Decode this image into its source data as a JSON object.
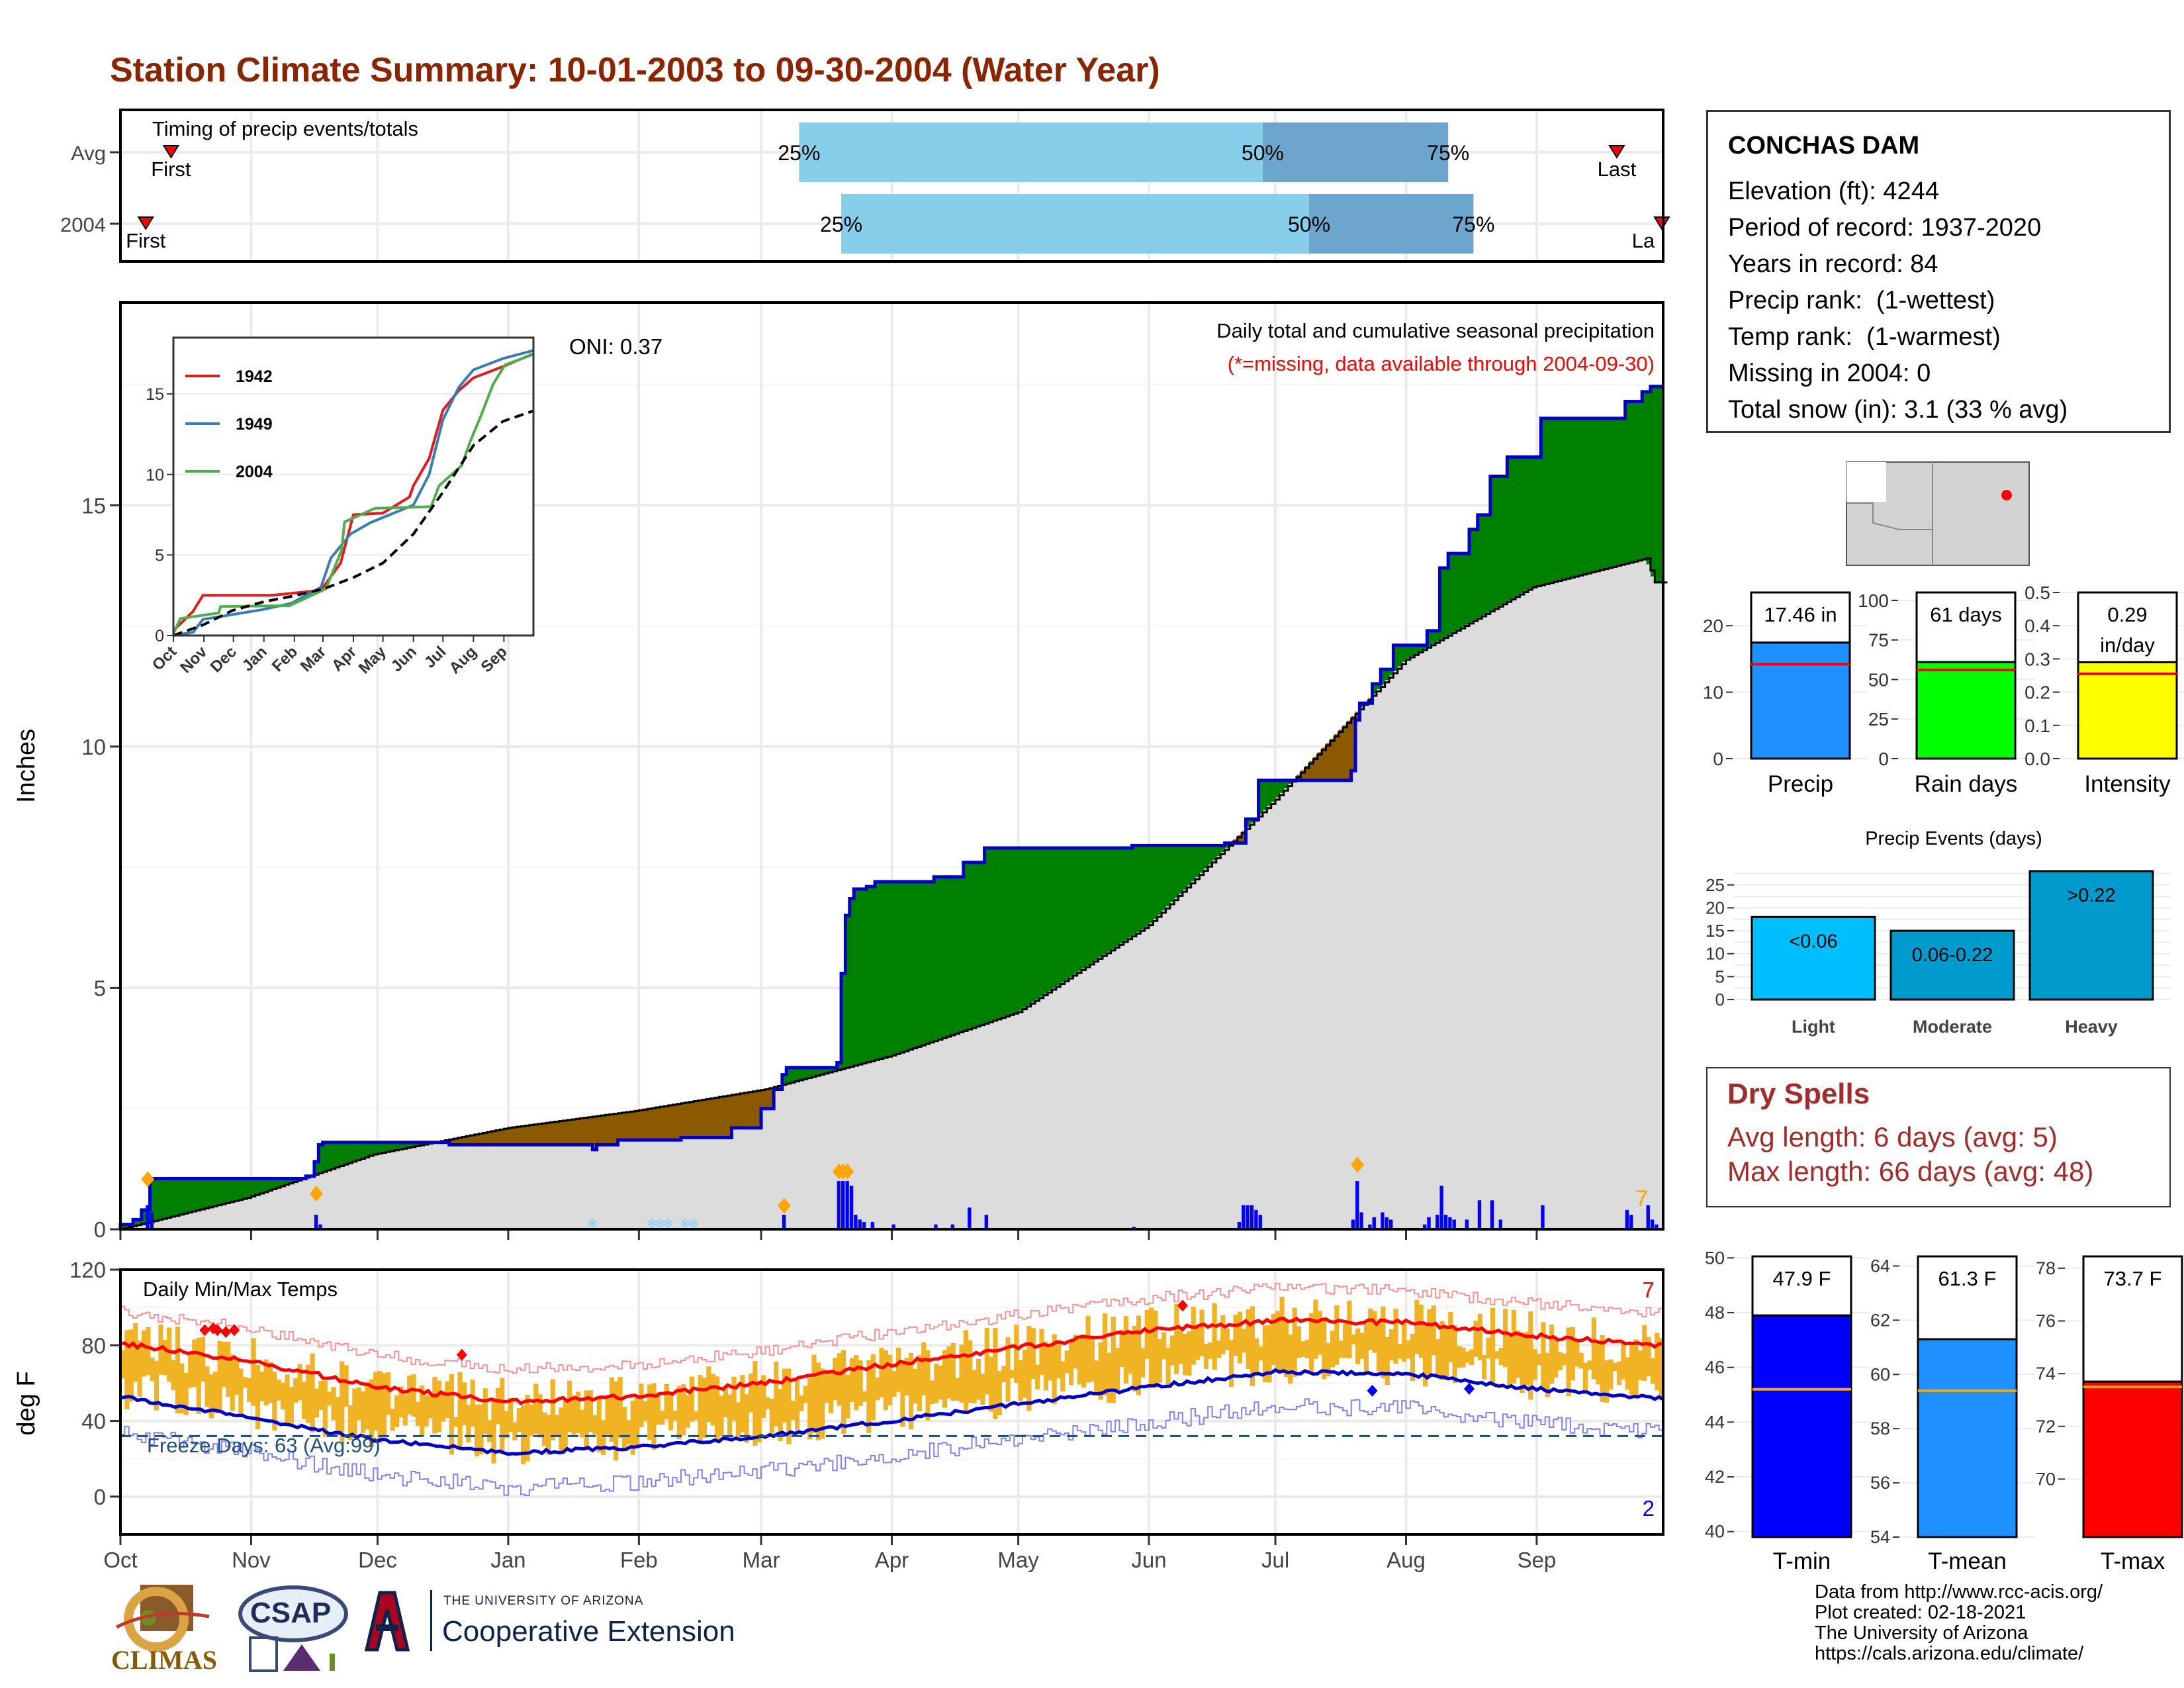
{
  "title": "Station Climate Summary: 10-01-2003 to 09-30-2004 (Water Year)",
  "colors": {
    "title": "#8b2500",
    "observed": "#0000cc",
    "green": "#008000",
    "brown": "#8b5a00",
    "normal": "#dcdcdc",
    "q_light": "#87ceeb",
    "q_dark": "#6ca6cd",
    "missing": "#ff0000",
    "tmax_band": "#f0b323",
    "tmax_norm": "#ff0000",
    "tmin_norm": "#0000cc",
    "precip_bar": "#1e90ff",
    "raindays_bar": "#00ff00",
    "intensity_bar": "#ffff00",
    "events_light": "#00bfff",
    "events_moderate": "#009acd",
    "events_heavy": "#009acd",
    "tmin_bar": "#0000ff",
    "tmean_bar": "#1e90ff",
    "tmax_bar": "#ff0000",
    "dry_spells": "#a52a2a"
  },
  "timing": {
    "label": "Timing of precip events/totals",
    "rows": [
      {
        "name": "Avg",
        "first": "First",
        "last": "Last",
        "q25": "25%",
        "q50": "50%",
        "q75": "75%",
        "first_day": 12,
        "last_day": 355,
        "q25_day": 161,
        "q50_day": 271,
        "q75_day": 315
      },
      {
        "name": "2004",
        "first": "First",
        "last": "La",
        "q25": "25%",
        "q50": "50%",
        "q75": "75%",
        "first_day": 6,
        "last_day": 366,
        "q25_day": 171,
        "q50_day": 282,
        "q75_day": 321
      }
    ]
  },
  "station": {
    "name": "CONCHAS DAM",
    "lines": [
      "Elevation (ft): 4244",
      "Period of record: 1937-2020",
      "Years in record: 84",
      "Precip rank:  (1-wettest)",
      "Temp rank:  (1-warmest)",
      "Missing in 2004: 0",
      "Total snow (in): 3.1 (33 % avg)"
    ]
  },
  "precip_chart": {
    "ylabel": "Inches",
    "yticks": [
      "0",
      "5",
      "10",
      "15"
    ],
    "ymax": 19.2,
    "header": "Daily total and cumulative seasonal precipitation",
    "subheader": "(*=missing, data available through 2004-09-30)",
    "oni": "ONI: 0.37",
    "right_count": "7",
    "observed_steps": [
      [
        0,
        0.1
      ],
      [
        3,
        0.2
      ],
      [
        5,
        0.4
      ],
      [
        7,
        1.05
      ],
      [
        44,
        1.1
      ],
      [
        46,
        1.4
      ],
      [
        47,
        1.75
      ],
      [
        48,
        1.8
      ],
      [
        78,
        1.75
      ],
      [
        112,
        1.65
      ],
      [
        113,
        1.75
      ],
      [
        118,
        1.85
      ],
      [
        133,
        1.9
      ],
      [
        145,
        2.1
      ],
      [
        152,
        2.5
      ],
      [
        155,
        2.9
      ],
      [
        157,
        3.2
      ],
      [
        158,
        3.35
      ],
      [
        170,
        3.45
      ],
      [
        171,
        5.3
      ],
      [
        172,
        6.5
      ],
      [
        173,
        6.85
      ],
      [
        174,
        7.05
      ],
      [
        177,
        7.1
      ],
      [
        179,
        7.2
      ],
      [
        193,
        7.3
      ],
      [
        200,
        7.6
      ],
      [
        205,
        7.9
      ],
      [
        240,
        7.95
      ],
      [
        262,
        8.0
      ],
      [
        267,
        8.5
      ],
      [
        270,
        9.3
      ],
      [
        292,
        9.5
      ],
      [
        293,
        10.55
      ],
      [
        294,
        10.9
      ],
      [
        297,
        11.3
      ],
      [
        299,
        11.6
      ],
      [
        302,
        12.1
      ],
      [
        310,
        12.4
      ],
      [
        313,
        13.7
      ],
      [
        315,
        14.0
      ],
      [
        320,
        14.5
      ],
      [
        322,
        14.8
      ],
      [
        325,
        15.6
      ],
      [
        329,
        16.0
      ],
      [
        337,
        16.8
      ],
      [
        357,
        17.15
      ],
      [
        361,
        17.35
      ],
      [
        363,
        17.46
      ],
      [
        366,
        17.46
      ]
    ],
    "normal_points": [
      [
        0,
        0
      ],
      [
        30,
        0.65
      ],
      [
        60,
        1.55
      ],
      [
        92,
        2.1
      ],
      [
        122,
        2.45
      ],
      [
        153,
        2.9
      ],
      [
        183,
        3.6
      ],
      [
        213,
        4.5
      ],
      [
        244,
        6.3
      ],
      [
        274,
        8.9
      ],
      [
        305,
        11.8
      ],
      [
        335,
        13.3
      ],
      [
        362,
        13.9
      ],
      [
        364,
        13.4
      ],
      [
        366,
        13.4
      ]
    ],
    "daily_bars": [
      [
        6,
        0.5
      ],
      [
        7,
        0.35
      ],
      [
        46,
        0.3
      ],
      [
        47,
        0.1
      ],
      [
        157,
        0.3
      ],
      [
        170,
        1.0
      ],
      [
        171,
        1.0
      ],
      [
        172,
        1.0
      ],
      [
        173,
        0.9
      ],
      [
        174,
        0.3
      ],
      [
        175,
        0.2
      ],
      [
        176,
        0.15
      ],
      [
        178,
        0.15
      ],
      [
        183,
        0.1
      ],
      [
        193,
        0.1
      ],
      [
        197,
        0.1
      ],
      [
        201,
        0.45
      ],
      [
        205,
        0.3
      ],
      [
        240,
        0.05
      ],
      [
        265,
        0.15
      ],
      [
        266,
        0.5
      ],
      [
        267,
        0.5
      ],
      [
        268,
        0.5
      ],
      [
        269,
        0.4
      ],
      [
        270,
        0.3
      ],
      [
        292,
        0.2
      ],
      [
        293,
        1.0
      ],
      [
        294,
        0.35
      ],
      [
        296,
        0.1
      ],
      [
        297,
        0.25
      ],
      [
        299,
        0.35
      ],
      [
        300,
        0.25
      ],
      [
        301,
        0.2
      ],
      [
        309,
        0.1
      ],
      [
        310,
        0.25
      ],
      [
        312,
        0.3
      ],
      [
        313,
        0.9
      ],
      [
        314,
        0.3
      ],
      [
        315,
        0.25
      ],
      [
        316,
        0.2
      ],
      [
        319,
        0.2
      ],
      [
        322,
        0.6
      ],
      [
        325,
        0.6
      ],
      [
        327,
        0.2
      ],
      [
        337,
        0.5
      ],
      [
        357,
        0.4
      ],
      [
        358,
        0.3
      ],
      [
        362,
        0.5
      ],
      [
        363,
        0.2
      ],
      [
        364,
        0.1
      ]
    ],
    "snow_days": [
      112,
      126,
      128,
      130,
      134,
      136
    ],
    "inset": {
      "yticks": [
        "0",
        "5",
        "10",
        "15"
      ],
      "ymax": 18.5,
      "xticks": [
        "Oct",
        "Nov",
        "Dec",
        "Jan",
        "Feb",
        "Mar",
        "Apr",
        "May",
        "Jun",
        "Jul",
        "Aug",
        "Sep"
      ],
      "series": [
        {
          "name": "1942",
          "color": "#e41a1c",
          "points": [
            [
              0,
              0.3
            ],
            [
              20,
              1.5
            ],
            [
              30,
              2.5
            ],
            [
              100,
              2.5
            ],
            [
              150,
              2.8
            ],
            [
              170,
              4.5
            ],
            [
              183,
              7.5
            ],
            [
              213,
              7.6
            ],
            [
              240,
              8.6
            ],
            [
              244,
              9.3
            ],
            [
              260,
              11.0
            ],
            [
              274,
              14.0
            ],
            [
              290,
              15.2
            ],
            [
              305,
              16.0
            ],
            [
              335,
              16.7
            ],
            [
              366,
              17.5
            ]
          ]
        },
        {
          "name": "1949",
          "color": "#377eb8",
          "points": [
            [
              0,
              0
            ],
            [
              20,
              0.2
            ],
            [
              30,
              1.0
            ],
            [
              60,
              1.3
            ],
            [
              90,
              1.6
            ],
            [
              120,
              2.0
            ],
            [
              150,
              3.0
            ],
            [
              160,
              4.8
            ],
            [
              180,
              6.3
            ],
            [
              200,
              7.0
            ],
            [
              244,
              8.1
            ],
            [
              260,
              10.0
            ],
            [
              274,
              13.4
            ],
            [
              290,
              15.4
            ],
            [
              305,
              16.5
            ],
            [
              335,
              17.2
            ],
            [
              366,
              17.7
            ]
          ]
        },
        {
          "name": "2004",
          "color": "#4daf4a",
          "points": [
            [
              0,
              0.1
            ],
            [
              7,
              1.05
            ],
            [
              46,
              1.4
            ],
            [
              48,
              1.8
            ],
            [
              118,
              1.85
            ],
            [
              155,
              2.9
            ],
            [
              158,
              3.35
            ],
            [
              171,
              5.3
            ],
            [
              174,
              7.05
            ],
            [
              205,
              7.9
            ],
            [
              262,
              8.0
            ],
            [
              270,
              9.3
            ],
            [
              293,
              10.55
            ],
            [
              302,
              12.1
            ],
            [
              313,
              13.7
            ],
            [
              325,
              15.6
            ],
            [
              337,
              16.8
            ],
            [
              366,
              17.46
            ]
          ]
        },
        {
          "name": "",
          "color": "#000000",
          "dash": true,
          "points": [
            [
              0,
              0
            ],
            [
              30,
              0.65
            ],
            [
              60,
              1.55
            ],
            [
              92,
              2.1
            ],
            [
              122,
              2.45
            ],
            [
              153,
              2.9
            ],
            [
              183,
              3.6
            ],
            [
              213,
              4.5
            ],
            [
              244,
              6.3
            ],
            [
              274,
              8.9
            ],
            [
              305,
              11.8
            ],
            [
              335,
              13.3
            ],
            [
              366,
              13.95
            ]
          ]
        }
      ]
    }
  },
  "temp_chart": {
    "ylabel": "deg F",
    "label": "Daily Min/Max Temps",
    "freeze": "Freeze Days: 63 (Avg:99)",
    "freeze_line": 32,
    "yticks": [
      "0",
      "40",
      "80",
      "120"
    ],
    "ymin": -20,
    "ymax": 120,
    "top_count": "7",
    "bottom_count": "2",
    "record_high_days": [
      [
        20,
        88
      ],
      [
        22,
        89
      ],
      [
        23,
        88
      ],
      [
        25,
        87
      ],
      [
        27,
        88
      ],
      [
        81,
        75
      ],
      [
        252,
        101
      ],
      [
        297,
        56
      ],
      [
        320,
        57
      ]
    ],
    "xticks": [
      "Oct",
      "Nov",
      "Dec",
      "Jan",
      "Feb",
      "Mar",
      "Apr",
      "May",
      "Jun",
      "Jul",
      "Aug",
      "Sep"
    ],
    "tmax_normal": [
      [
        0,
        81
      ],
      [
        30,
        72
      ],
      [
        61,
        58
      ],
      [
        92,
        50
      ],
      [
        122,
        53
      ],
      [
        153,
        60
      ],
      [
        183,
        70
      ],
      [
        213,
        79
      ],
      [
        244,
        88
      ],
      [
        274,
        93
      ],
      [
        305,
        92
      ],
      [
        335,
        85
      ],
      [
        366,
        80
      ]
    ],
    "tmin_normal": [
      [
        0,
        53
      ],
      [
        30,
        42
      ],
      [
        61,
        30
      ],
      [
        92,
        23
      ],
      [
        122,
        26
      ],
      [
        153,
        32
      ],
      [
        183,
        40
      ],
      [
        213,
        49
      ],
      [
        244,
        58
      ],
      [
        274,
        66
      ],
      [
        305,
        65
      ],
      [
        335,
        57
      ],
      [
        366,
        52
      ]
    ]
  },
  "bar_precip": {
    "label": "Precip",
    "value_text": "17.46 in",
    "value": 17.46,
    "normal": 14.2,
    "yticks": [
      "0",
      "10",
      "20"
    ],
    "ymax": 25
  },
  "bar_raindays": {
    "label": "Rain days",
    "value_text": "61 days",
    "value": 61,
    "normal": 56,
    "yticks": [
      "0",
      "25",
      "50",
      "75",
      "100"
    ],
    "ymax": 105
  },
  "bar_intensity": {
    "label": "Intensity",
    "value_text": "0.29 in/day",
    "value_line1": "0.29",
    "value_line2": "in/day",
    "value": 0.29,
    "normal": 0.255,
    "yticks": [
      "0.0",
      "0.1",
      "0.2",
      "0.3",
      "0.4",
      "0.5"
    ],
    "ymax": 0.5
  },
  "precip_events": {
    "title": "Precip Events (days)",
    "yticks": [
      "0",
      "5",
      "10",
      "15",
      "20",
      "25"
    ],
    "ymax": 28,
    "bars": [
      {
        "label": "Light",
        "tag": "<0.06",
        "value": 18
      },
      {
        "label": "Moderate",
        "tag": "0.06-0.22",
        "value": 15
      },
      {
        "label": "Heavy",
        "tag": ">0.22",
        "value": 28
      }
    ]
  },
  "dry_spells": {
    "title": "Dry Spells",
    "avg": "Avg length: 6 days (avg: 5)",
    "max": "Max length: 66 days (avg: 48)"
  },
  "temp_bars": [
    {
      "label": "T-min",
      "value_text": "47.9 F",
      "value": 47.9,
      "normal": 45.2,
      "ymin": 39.8,
      "ymax": 50.2,
      "yticks": [
        {
          "v": 40,
          "t": "40"
        },
        {
          "v": 42,
          "t": "42"
        },
        {
          "v": 44,
          "t": "44"
        },
        {
          "v": 46,
          "t": "46"
        },
        {
          "v": 48,
          "t": "48"
        },
        {
          "v": 50,
          "t": "50"
        }
      ]
    },
    {
      "label": "T-mean",
      "value_text": "61.3 F",
      "value": 61.3,
      "normal": 59.4,
      "ymin": 54,
      "ymax": 64.5,
      "yticks": [
        {
          "v": 54,
          "t": "54"
        },
        {
          "v": 56,
          "t": "56"
        },
        {
          "v": 58,
          "t": "58"
        },
        {
          "v": 60,
          "t": "60"
        },
        {
          "v": 62,
          "t": "62"
        },
        {
          "v": 64,
          "t": "64"
        }
      ]
    },
    {
      "label": "T-max",
      "value_text": "73.7 F",
      "value": 73.7,
      "normal": 73.5,
      "ymin": 67.8,
      "ymax": 78.6,
      "yticks": [
        {
          "v": 70,
          "t": "70"
        },
        {
          "v": 72,
          "t": "72"
        },
        {
          "v": 74,
          "t": "74"
        },
        {
          "v": 76,
          "t": "76"
        },
        {
          "v": 78,
          "t": "78"
        }
      ]
    }
  ],
  "footer": {
    "lines": [
      "Data from http://www.rcc-acis.org/",
      "Plot created: 02-18-2021",
      "The University of Arizona",
      "https://cals.arizona.edu/climate/"
    ],
    "climas": "CLIMAS",
    "csap": "CSAP",
    "ua_small": "THE UNIVERSITY OF ARIZONA",
    "ua_big": "Cooperative Extension"
  }
}
